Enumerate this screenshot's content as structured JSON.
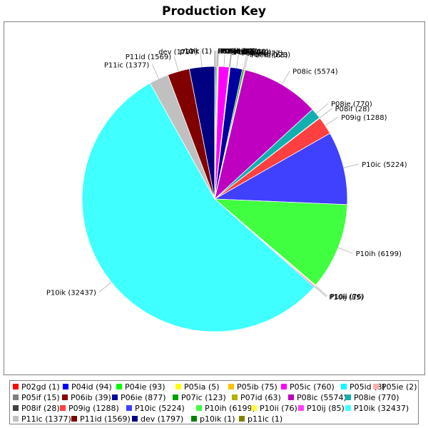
{
  "chart_data": {
    "type": "pie",
    "title": "Production Key",
    "slices": [
      {
        "label": "P02gd",
        "value": 1,
        "color": "#ff0000"
      },
      {
        "label": "P04id",
        "value": 94,
        "color": "#0000ff"
      },
      {
        "label": "P04ie",
        "value": 93,
        "color": "#00ff00"
      },
      {
        "label": "P05ia",
        "value": 5,
        "color": "#ffff00"
      },
      {
        "label": "P05ib",
        "value": 75,
        "color": "#ffc000"
      },
      {
        "label": "P05ic",
        "value": 760,
        "color": "#ff00ff"
      },
      {
        "label": "P05id",
        "value": 8,
        "color": "#00ffff"
      },
      {
        "label": "P05ie",
        "value": 2,
        "color": "#ffafaf"
      },
      {
        "label": "P05if",
        "value": 15,
        "color": "#808080"
      },
      {
        "label": "P06ib",
        "value": 39,
        "color": "#8b0000"
      },
      {
        "label": "P06ie",
        "value": 877,
        "color": "#0000a0"
      },
      {
        "label": "P07ic",
        "value": 123,
        "color": "#00a000"
      },
      {
        "label": "P07id",
        "value": 63,
        "color": "#b0b000"
      },
      {
        "label": "P08ic",
        "value": 5574,
        "color": "#c000c0"
      },
      {
        "label": "P08ie",
        "value": 770,
        "color": "#10b0b0"
      },
      {
        "label": "P08if",
        "value": 28,
        "color": "#404040"
      },
      {
        "label": "P09ig",
        "value": 1288,
        "color": "#ff4040"
      },
      {
        "label": "P10ic",
        "value": 5224,
        "color": "#4040ff"
      },
      {
        "label": "P10ih",
        "value": 6199,
        "color": "#40ff40"
      },
      {
        "label": "P10ii",
        "value": 76,
        "color": "#ffff40"
      },
      {
        "label": "P10ij",
        "value": 85,
        "color": "#ff40ff"
      },
      {
        "label": "P10ik",
        "value": 32437,
        "color": "#40ffff"
      },
      {
        "label": "P11ic",
        "value": 1377,
        "color": "#c0c0c0"
      },
      {
        "label": "P11id",
        "value": 1569,
        "color": "#800000"
      },
      {
        "label": "dev",
        "value": 1797,
        "color": "#000080"
      },
      {
        "label": "p10ik",
        "value": 1,
        "color": "#008000"
      },
      {
        "label": "p11ic",
        "value": 1,
        "color": "#808000"
      }
    ],
    "visible_slice_labels": [
      "P02gd (1)",
      "P04id (94)",
      "P04ie (93)",
      "P05ia (5)",
      "P05ib (75)",
      "P05ic (760)",
      "P05id (8)",
      "P05ie (2)",
      "P05if (15)",
      "P06ib (39)",
      "P06ie (877)",
      "P07ic (123)",
      "P07id (63)",
      "P08ic (5574)",
      "P08ie (770)",
      "P08if (28)",
      "P09ig (1288)",
      "P10ic (5224)",
      "P10ih (6199)",
      "P10ii (76)",
      "P10ij (85)",
      "P10ik (32437)",
      "P11ic (1377)",
      "P11id (1569)",
      "dev (1797)",
      "p10ik (1)",
      "p11ic (1)"
    ],
    "legend": {
      "placement": "bottom",
      "items": [
        "P02gd (1)",
        "P04id (94)",
        "P04ie (93)",
        "P05ia (5)",
        "P05ib (75)",
        "P05ic (760)",
        "P05id (8)",
        "P05ie (2)",
        "P05if (15)",
        "P06ib (39)",
        "P06ie (877)",
        "P07ic (123)",
        "P07id (63)",
        "P08ic (5574)",
        "P08ie (770)",
        "P08if (28)",
        "P09ig (1288)",
        "P10ic (5224)",
        "P10ih (6199)",
        "P10ii (76)",
        "P10ij (85)",
        "P10ik (32437)",
        "P11ic (1377)",
        "P11id (1569)",
        "dev (1797)",
        "p10ik (1)",
        "p11ic (1)"
      ]
    }
  }
}
